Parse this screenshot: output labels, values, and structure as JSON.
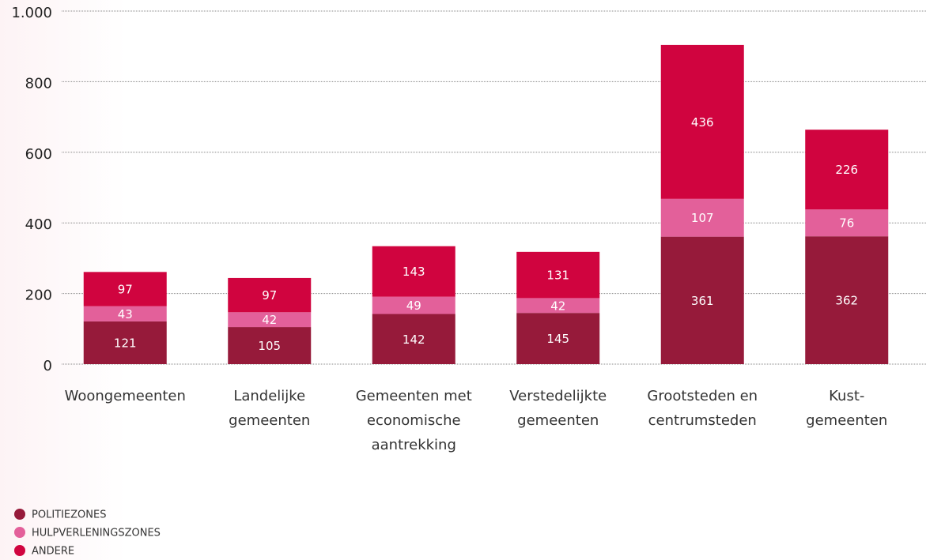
{
  "chart_data": {
    "type": "bar",
    "stacked": true,
    "categories": [
      "Woongemeenten",
      "Landelijke\ngemeenten",
      "Gemeenten met\neconomische\naantrekking",
      "Verstedelijkte\ngemeenten",
      "Grootsteden en\ncentrumsteden",
      "Kust-\ngemeenten"
    ],
    "series": [
      {
        "name": "POLITIEZONES",
        "color": "#961a3a",
        "values": [
          121,
          105,
          142,
          145,
          361,
          362
        ]
      },
      {
        "name": "HULPVERLENINGSZONES",
        "color": "#e3609a",
        "values": [
          43,
          42,
          49,
          42,
          107,
          76
        ]
      },
      {
        "name": "ANDERE",
        "color": "#d0043f",
        "values": [
          97,
          97,
          143,
          131,
          436,
          226
        ]
      }
    ],
    "ylim": [
      0,
      1000
    ],
    "yticks": [
      0,
      200,
      400,
      600,
      800,
      {
        "value": 1000,
        "label": "1.000"
      }
    ],
    "grid": true,
    "legend": "bottom-left"
  }
}
